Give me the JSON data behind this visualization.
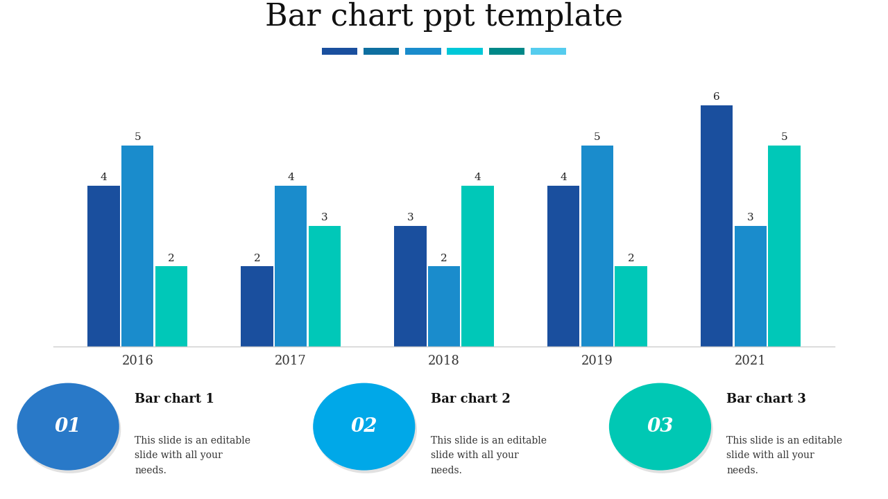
{
  "title": "Bar chart ppt template",
  "title_font": "serif",
  "title_fontsize": 32,
  "years": [
    "2016",
    "2017",
    "2018",
    "2019",
    "2021"
  ],
  "series": [
    {
      "values": [
        4,
        2,
        3,
        4,
        6
      ],
      "color": "#1a4f9e"
    },
    {
      "values": [
        5,
        4,
        2,
        5,
        3
      ],
      "color": "#1a8ccc"
    },
    {
      "values": [
        2,
        3,
        4,
        2,
        5
      ],
      "color": "#00c8b8"
    }
  ],
  "bar_width": 0.22,
  "ylim": [
    0,
    7
  ],
  "background_color": "#ffffff",
  "axis_line_color": "#cccccc",
  "value_fontsize": 11,
  "year_fontsize": 13,
  "separator_colors": [
    "#1a4f9e",
    "#0e6fa0",
    "#1a8ccc",
    "#00c8d8",
    "#008888",
    "#55ccee"
  ],
  "placeholders": [
    {
      "number": "01",
      "title": "Bar chart 1",
      "text": "This slide is an editable\nslide with all your\nneeds.",
      "circle_color": "#2979c8"
    },
    {
      "number": "02",
      "title": "Bar chart 2",
      "text": "This slide is an editable\nslide with all your\nneeds.",
      "circle_color": "#00a8e8"
    },
    {
      "number": "03",
      "title": "Bar chart 3",
      "text": "This slide is an editable\nslide with all your\nneeds.",
      "circle_color": "#00c8b4"
    }
  ]
}
